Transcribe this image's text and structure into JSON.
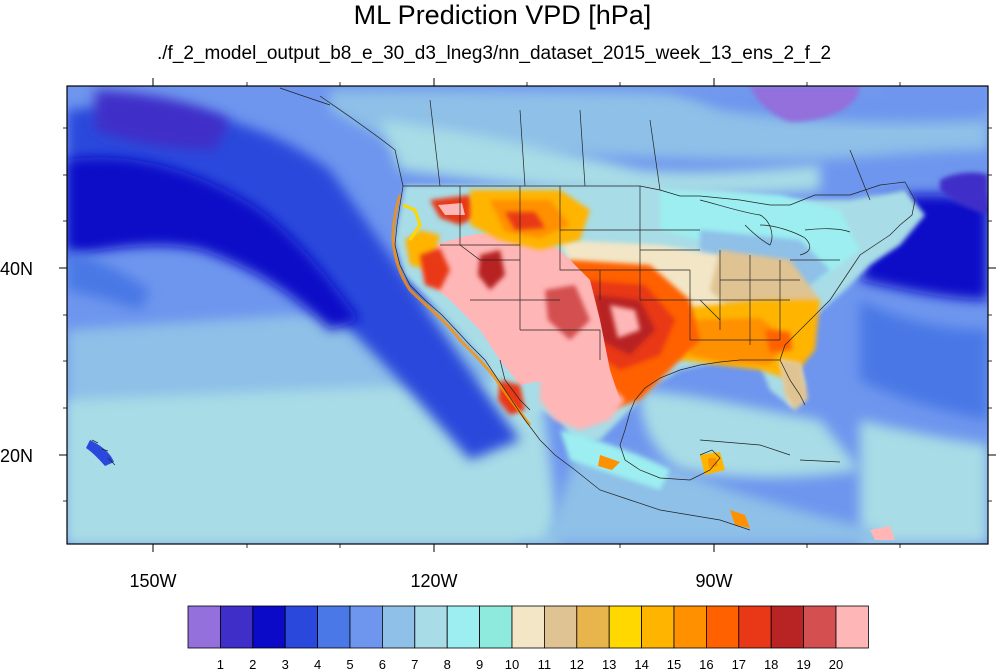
{
  "title": "ML Prediction VPD [hPa]",
  "subtitle": "./f_2_model_output_b8_e_30_d3_lneg3/nn_dataset_2015_week_13_ens_2_f_2",
  "map": {
    "longitude_labels": [
      "150W",
      "120W",
      "90W"
    ],
    "latitude_labels": [
      "40N",
      "20N"
    ]
  },
  "colorbar": {
    "labels": [
      "1",
      "2",
      "3",
      "4",
      "5",
      "6",
      "7",
      "8",
      "9",
      "10",
      "11",
      "12",
      "13",
      "14",
      "15",
      "16",
      "17",
      "18",
      "19",
      "20"
    ],
    "colors": [
      "#9370db",
      "#3f2fc8",
      "#0a0ac8",
      "#2a48dc",
      "#4a78e6",
      "#6e96ee",
      "#8ec0e8",
      "#a8dce6",
      "#9ceef0",
      "#8eeadc",
      "#f2e6c6",
      "#e0c392",
      "#e8b44c",
      "#ffd800",
      "#ffb400",
      "#ff9000",
      "#ff6000",
      "#e83818",
      "#b82424",
      "#d45050",
      "#ffb6b6"
    ]
  }
}
